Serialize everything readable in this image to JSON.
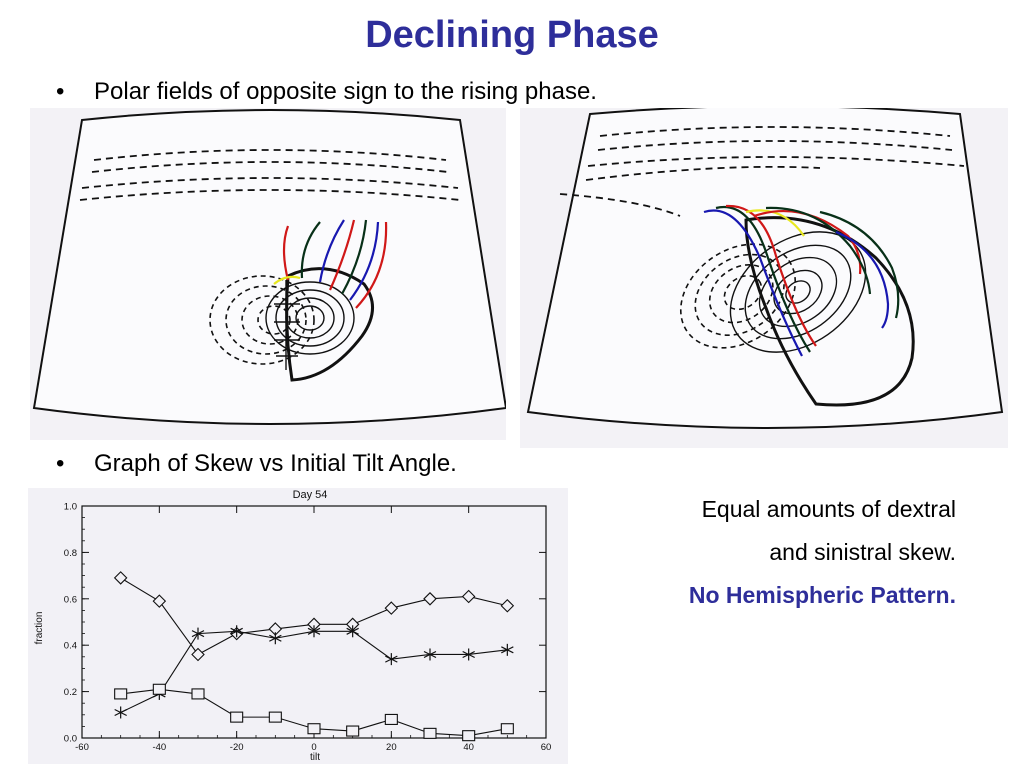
{
  "slide": {
    "title": "Declining Phase",
    "bullets": [
      "Polar fields of opposite sign to the rising phase.",
      "Graph of Skew  vs  Initial Tilt Angle."
    ],
    "bullet_symbol": "•",
    "notes": [
      "Equal amounts of dextral",
      "and sinistral skew.",
      "No Hemispheric Pattern."
    ]
  },
  "colors": {
    "title": "#2e2e9a",
    "emphasis": "#2e2e9a",
    "field_red": "#d01818",
    "field_blue": "#1818b0",
    "field_yellow": "#e8e820",
    "field_dark_green": "#083018"
  },
  "chart_data": {
    "type": "line",
    "title": "Day 54",
    "xlabel": "tilt",
    "ylabel": "fraction",
    "xlim": [
      -60,
      60
    ],
    "ylim": [
      0.0,
      1.0
    ],
    "xticks": [
      -60,
      -40,
      -20,
      0,
      20,
      40,
      60
    ],
    "yticks": [
      "0.0",
      "0.2",
      "0.4",
      "0.6",
      "0.8",
      "1.0"
    ],
    "x": [
      -50,
      -40,
      -30,
      -20,
      -10,
      0,
      10,
      20,
      30,
      40,
      50
    ],
    "series": [
      {
        "marker": "diamond",
        "values": [
          0.69,
          0.59,
          0.36,
          0.45,
          0.47,
          0.49,
          0.49,
          0.56,
          0.6,
          0.61,
          0.57
        ]
      },
      {
        "marker": "asterisk",
        "values": [
          0.11,
          0.19,
          0.45,
          0.46,
          0.43,
          0.46,
          0.46,
          0.34,
          0.36,
          0.36,
          0.38
        ]
      },
      {
        "marker": "square",
        "values": [
          0.19,
          0.21,
          0.19,
          0.09,
          0.09,
          0.04,
          0.03,
          0.08,
          0.02,
          0.01,
          0.04
        ]
      }
    ],
    "grid": false
  }
}
